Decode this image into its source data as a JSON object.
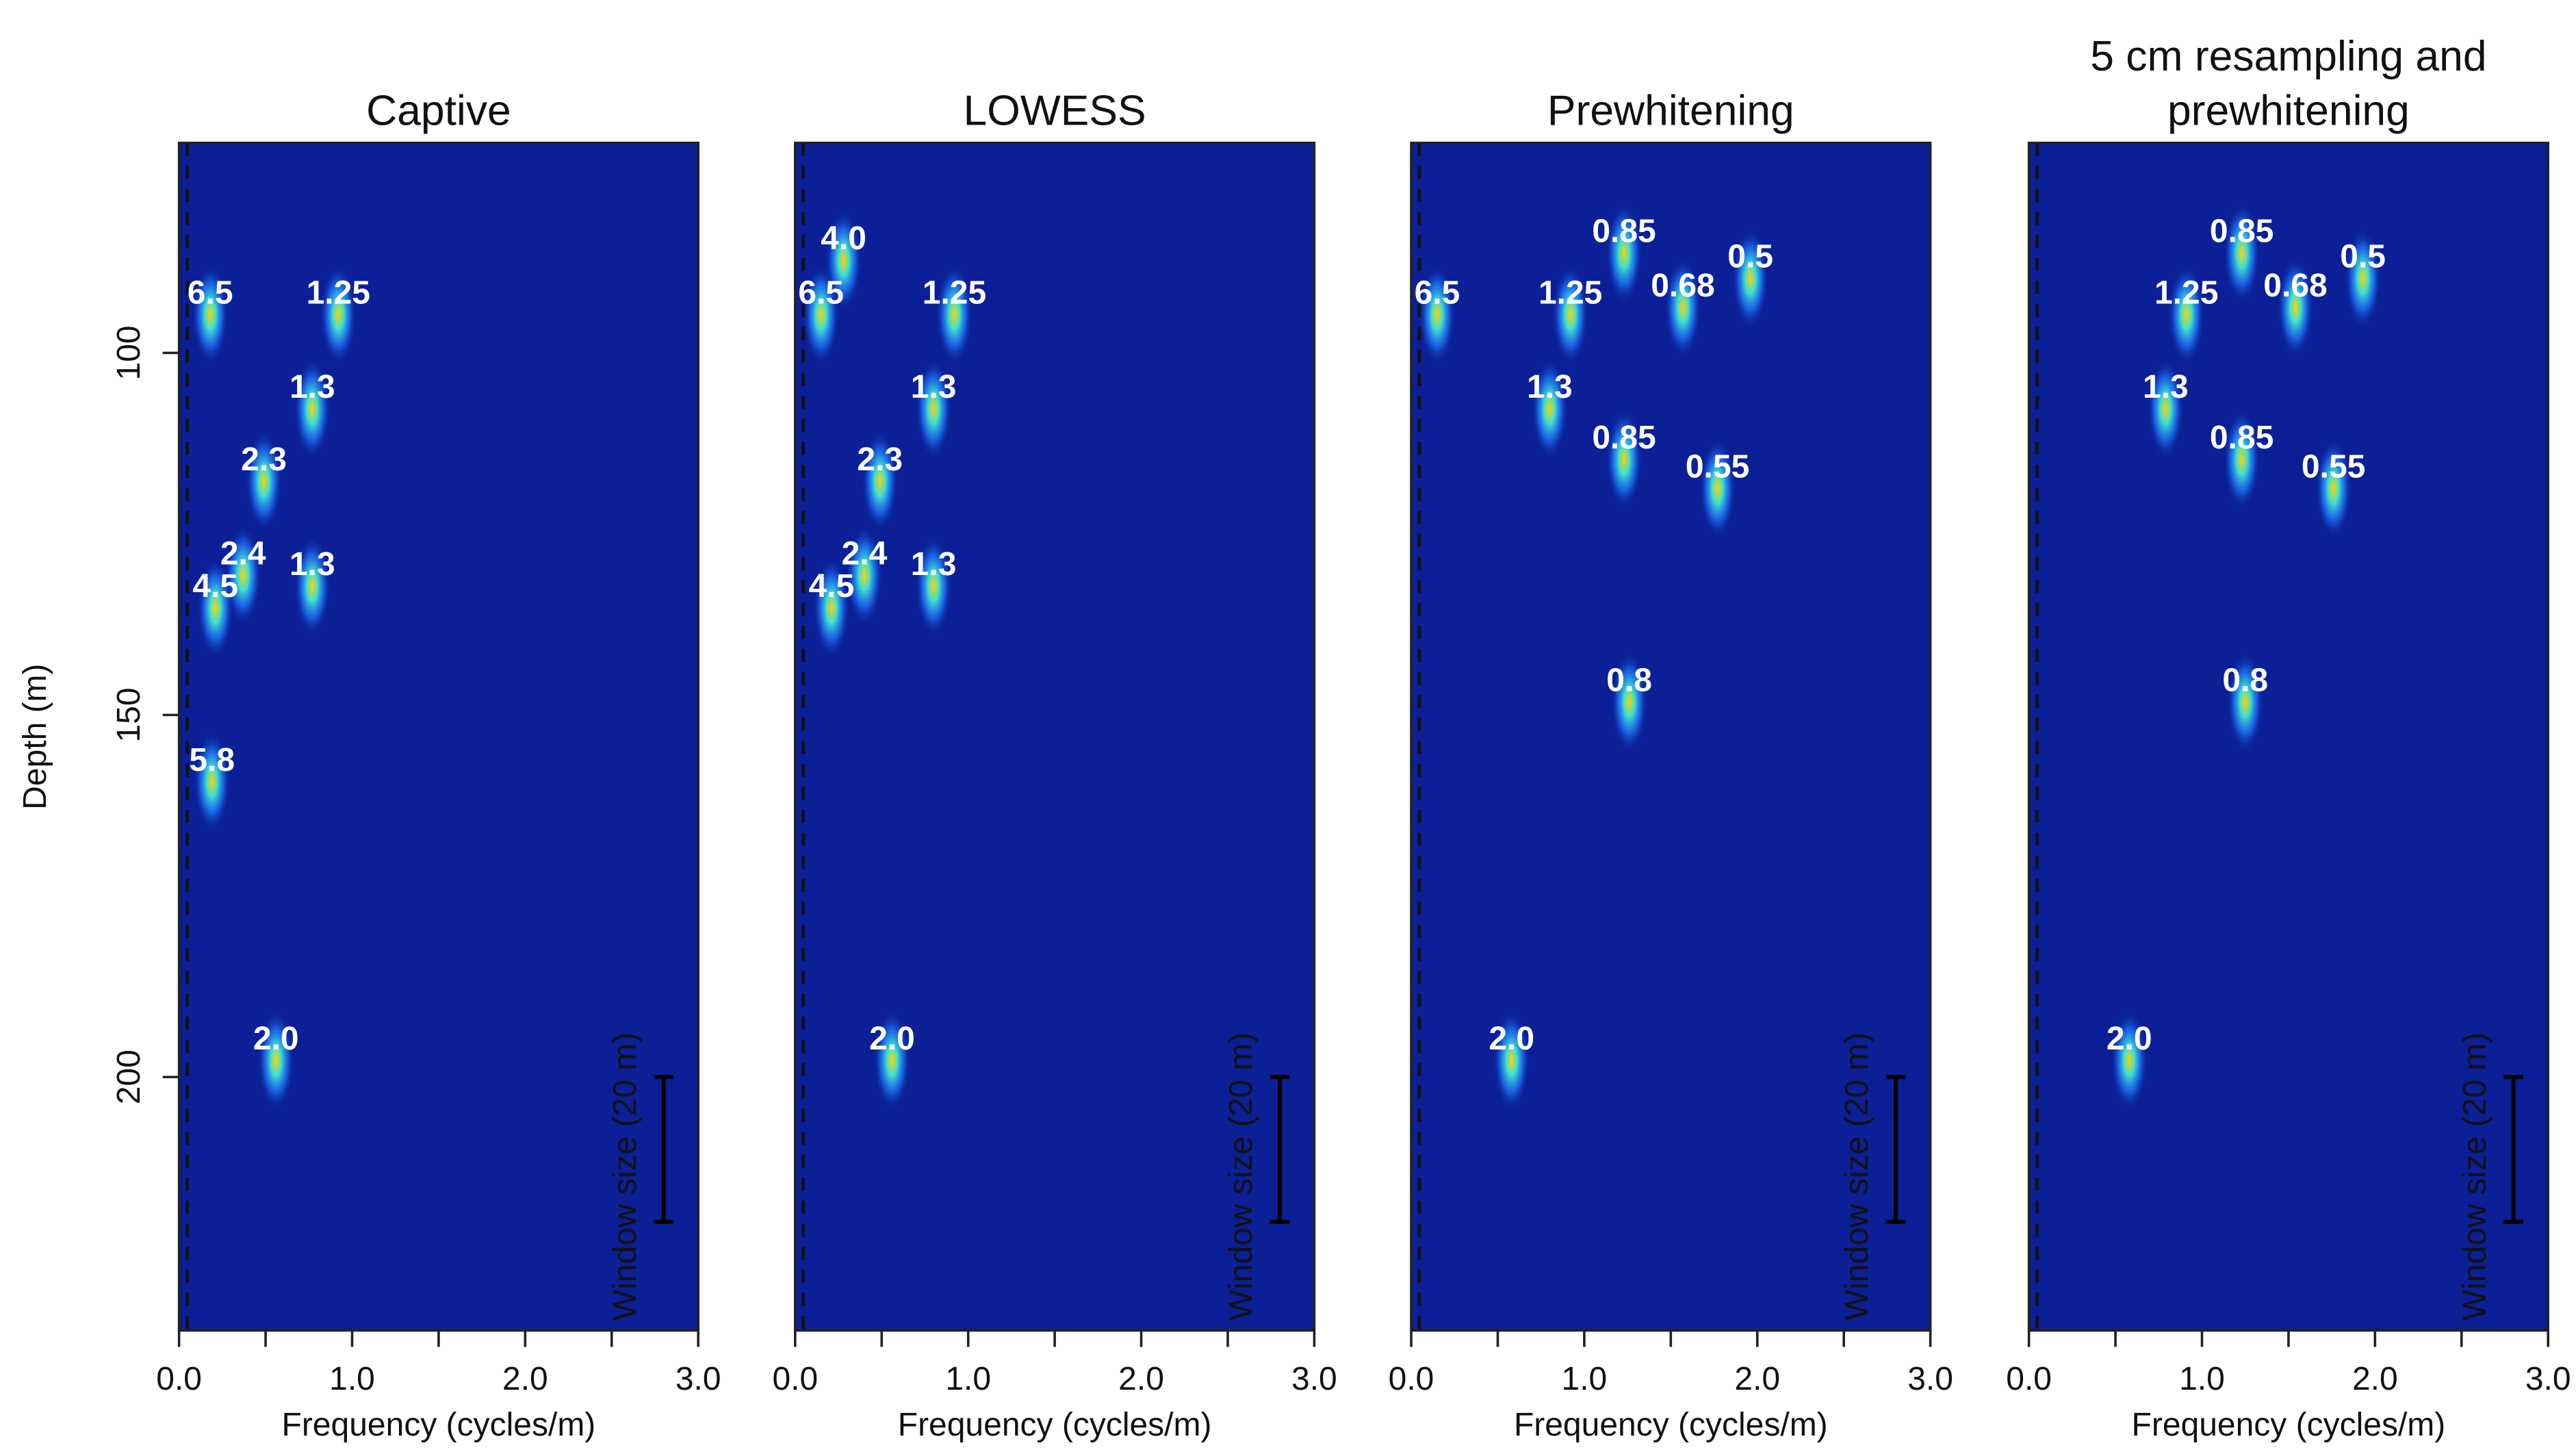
{
  "chart_data": [
    {
      "type": "heatmap",
      "title": "Captive",
      "xlabel": "Frequency (cycles/m)",
      "ylabel": "Depth (m)",
      "xlim": [
        0,
        3
      ],
      "xticks": [
        {
          "value": 0,
          "label": "0.0"
        },
        {
          "value": 1,
          "label": "1.0"
        },
        {
          "value": 2,
          "label": "2.0"
        },
        {
          "value": 3,
          "label": "3.0"
        }
      ],
      "xminor": [
        0.5,
        1.5,
        2.5
      ],
      "ylim": [
        71,
        235
      ],
      "y_inverted": true,
      "yticks": [
        100,
        150,
        200
      ],
      "annotations": [
        {
          "text": "6.5",
          "x": 0.18,
          "y": 92
        },
        {
          "text": "1.25",
          "x": 0.92,
          "y": 92
        },
        {
          "text": "1.3",
          "x": 0.77,
          "y": 105
        },
        {
          "text": "2.3",
          "x": 0.49,
          "y": 115
        },
        {
          "text": "2.4",
          "x": 0.37,
          "y": 128
        },
        {
          "text": "1.3",
          "x": 0.77,
          "y": 129.5
        },
        {
          "text": "4.5",
          "x": 0.21,
          "y": 132.5
        },
        {
          "text": "5.8",
          "x": 0.19,
          "y": 156.5
        },
        {
          "text": "2.0",
          "x": 0.56,
          "y": 195
        }
      ],
      "window_bar": {
        "label": "Window size (20 m)",
        "x": 2.8,
        "from": 200,
        "to": 220
      }
    },
    {
      "type": "heatmap",
      "title": "LOWESS",
      "xlabel": "Frequency (cycles/m)",
      "xlim": [
        0,
        3
      ],
      "xticks": [
        {
          "value": 0,
          "label": "0.0"
        },
        {
          "value": 1,
          "label": "1.0"
        },
        {
          "value": 2,
          "label": "2.0"
        },
        {
          "value": 3,
          "label": "3.0"
        }
      ],
      "xminor": [
        0.5,
        1.5,
        2.5
      ],
      "ylim": [
        71,
        235
      ],
      "y_inverted": true,
      "annotations": [
        {
          "text": "4.0",
          "x": 0.28,
          "y": 84.5
        },
        {
          "text": "6.5",
          "x": 0.15,
          "y": 92
        },
        {
          "text": "1.25",
          "x": 0.92,
          "y": 92
        },
        {
          "text": "1.3",
          "x": 0.8,
          "y": 105
        },
        {
          "text": "2.3",
          "x": 0.49,
          "y": 115
        },
        {
          "text": "2.4",
          "x": 0.4,
          "y": 128
        },
        {
          "text": "1.3",
          "x": 0.8,
          "y": 129.5
        },
        {
          "text": "4.5",
          "x": 0.21,
          "y": 132.5
        },
        {
          "text": "2.0",
          "x": 0.56,
          "y": 195
        }
      ],
      "window_bar": {
        "label": "Window size (20 m)",
        "x": 2.8,
        "from": 200,
        "to": 220
      }
    },
    {
      "type": "heatmap",
      "title": "Prewhitening",
      "xlabel": "Frequency (cycles/m)",
      "xlim": [
        0,
        3
      ],
      "xticks": [
        {
          "value": 0,
          "label": "0.0"
        },
        {
          "value": 1,
          "label": "1.0"
        },
        {
          "value": 2,
          "label": "2.0"
        },
        {
          "value": 3,
          "label": "3.0"
        }
      ],
      "xminor": [
        0.5,
        1.5,
        2.5
      ],
      "ylim": [
        71,
        235
      ],
      "y_inverted": true,
      "annotations": [
        {
          "text": "0.85",
          "x": 1.23,
          "y": 83.5
        },
        {
          "text": "0.5",
          "x": 1.96,
          "y": 87
        },
        {
          "text": "6.5",
          "x": 0.15,
          "y": 92
        },
        {
          "text": "1.25",
          "x": 0.92,
          "y": 92
        },
        {
          "text": "0.68",
          "x": 1.57,
          "y": 91
        },
        {
          "text": "1.3",
          "x": 0.8,
          "y": 105
        },
        {
          "text": "0.85",
          "x": 1.23,
          "y": 112
        },
        {
          "text": "0.55",
          "x": 1.77,
          "y": 116
        },
        {
          "text": "0.8",
          "x": 1.26,
          "y": 145.5
        },
        {
          "text": "2.0",
          "x": 0.58,
          "y": 195
        }
      ],
      "window_bar": {
        "label": "Window size (20 m)",
        "x": 2.8,
        "from": 200,
        "to": 220
      }
    },
    {
      "type": "heatmap",
      "title": "5 cm resampling and prewhitening",
      "xlabel": "Frequency (cycles/m)",
      "xlim": [
        0,
        3
      ],
      "xticks": [
        {
          "value": 0,
          "label": "0.0"
        },
        {
          "value": 1,
          "label": "1.0"
        },
        {
          "value": 2,
          "label": "2.0"
        },
        {
          "value": 3,
          "label": "3.0"
        }
      ],
      "xminor": [
        0.5,
        1.5,
        2.5
      ],
      "ylim": [
        71,
        235
      ],
      "y_inverted": true,
      "annotations": [
        {
          "text": "0.85",
          "x": 1.23,
          "y": 83.5
        },
        {
          "text": "0.5",
          "x": 1.93,
          "y": 87
        },
        {
          "text": "1.25",
          "x": 0.91,
          "y": 92
        },
        {
          "text": "0.68",
          "x": 1.54,
          "y": 91
        },
        {
          "text": "1.3",
          "x": 0.79,
          "y": 105
        },
        {
          "text": "0.85",
          "x": 1.23,
          "y": 112
        },
        {
          "text": "0.55",
          "x": 1.76,
          "y": 116
        },
        {
          "text": "0.8",
          "x": 1.25,
          "y": 145.5
        },
        {
          "text": "2.0",
          "x": 0.58,
          "y": 195
        }
      ],
      "window_bar": {
        "label": "Window size (20 m)",
        "x": 2.8,
        "from": 200,
        "to": 220
      }
    }
  ]
}
